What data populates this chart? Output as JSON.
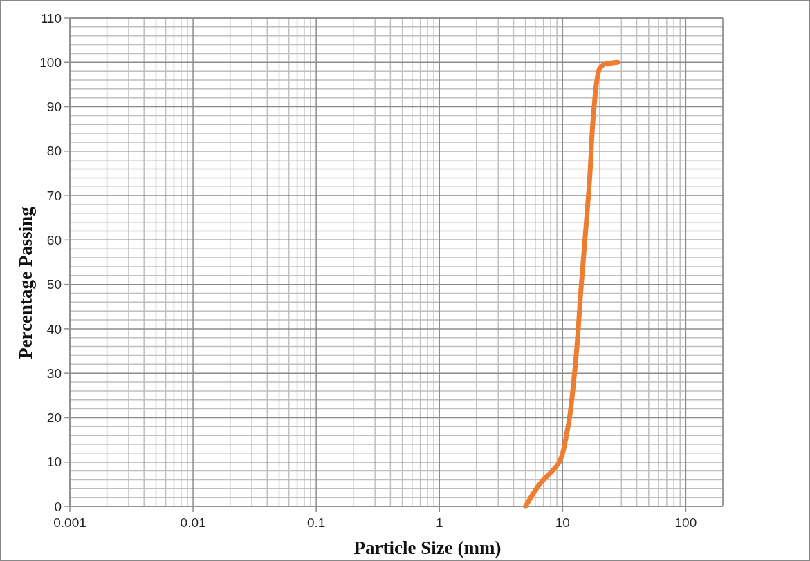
{
  "chart_data": {
    "type": "line",
    "xlabel": "Particle Size (mm)",
    "ylabel": "Percentage Passing",
    "log": "x",
    "x": [
      5,
      6.5,
      9.4,
      10.9,
      12.5,
      14.2,
      16.6,
      17.9,
      19.6,
      21.5,
      28
    ],
    "series": [
      {
        "color": "#ed7d31",
        "values": [
          0,
          5,
          10,
          17,
          30,
          50,
          74,
          89,
          98,
          99.5,
          100
        ]
      }
    ],
    "xlim": [
      0.001,
      200
    ],
    "xticks": [
      0.001,
      0.01,
      0.1,
      1,
      10,
      100
    ],
    "ylim": [
      0,
      110
    ],
    "yticks": [
      0,
      10,
      20,
      30,
      40,
      50,
      60,
      70,
      80,
      90,
      100,
      110
    ],
    "grid": true,
    "marker": "none",
    "line_style": "solid"
  }
}
